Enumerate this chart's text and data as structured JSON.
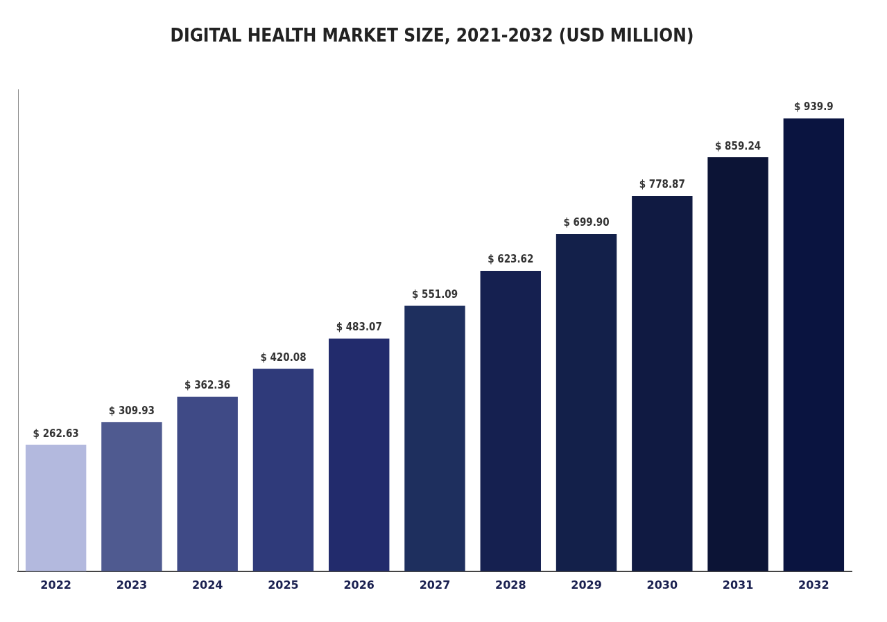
{
  "chart_data": {
    "type": "bar",
    "title": "DIGITAL HEALTH MARKET SIZE, 2021-2032 (USD MILLION)",
    "categories": [
      "2022",
      "2023",
      "2024",
      "2025",
      "2026",
      "2027",
      "2028",
      "2029",
      "2030",
      "2031",
      "2032"
    ],
    "values": [
      262.63,
      309.93,
      362.36,
      420.08,
      483.07,
      551.09,
      623.62,
      699.9,
      778.87,
      859.24,
      939.9
    ],
    "colors": [
      "#b3b9de",
      "#4f5a90",
      "#3f4a86",
      "#2f3a7a",
      "#222b6c",
      "#1e2f5e",
      "#152050",
      "#13204a",
      "#101a42",
      "#0c1436",
      "#0a1440"
    ],
    "value_labels": [
      "$ 262.63",
      "$ 309.93",
      "$ 362.36",
      "$ 420.08",
      "$ 483.07",
      "$ 551.09",
      "$ 623.62",
      "$ 699.90",
      "$ 778.87",
      "$ 859.24",
      "$ 939.9"
    ],
    "tick_labels": "x",
    "grid": false,
    "legend": false
  }
}
